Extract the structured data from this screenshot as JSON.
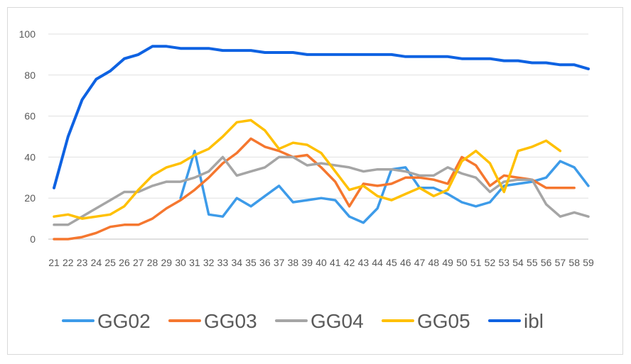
{
  "chart_data": {
    "type": "line",
    "title": "",
    "xlabel": "",
    "ylabel": "",
    "x": [
      21,
      22,
      23,
      24,
      25,
      26,
      27,
      28,
      29,
      30,
      31,
      32,
      33,
      34,
      35,
      36,
      37,
      38,
      39,
      40,
      41,
      42,
      43,
      44,
      45,
      46,
      47,
      48,
      49,
      50,
      51,
      52,
      53,
      54,
      55,
      56,
      57,
      58,
      59
    ],
    "ylim": [
      0,
      100
    ],
    "yticks": [
      0,
      20,
      40,
      60,
      80,
      100
    ],
    "grid": true,
    "legend_position": "bottom",
    "series": [
      {
        "name": "GG02",
        "color": "#3d9be9",
        "values": [
          null,
          null,
          null,
          null,
          null,
          null,
          null,
          null,
          null,
          20,
          43,
          12,
          11,
          20,
          16,
          21,
          26,
          18,
          19,
          20,
          19,
          11,
          8,
          15,
          34,
          35,
          25,
          25,
          22,
          18,
          16,
          18,
          26,
          27,
          28,
          30,
          38,
          35,
          26
        ]
      },
      {
        "name": "GG03",
        "color": "#f5772f",
        "values": [
          0,
          0,
          1,
          3,
          6,
          7,
          7,
          10,
          15,
          19,
          24,
          30,
          37,
          42,
          49,
          45,
          43,
          40,
          41,
          35,
          28,
          16,
          27,
          26,
          27,
          30,
          30,
          29,
          27,
          40,
          36,
          26,
          31,
          30,
          29,
          25,
          25,
          25,
          null
        ]
      },
      {
        "name": "GG04",
        "color": "#a5a5a5",
        "values": [
          7,
          7,
          11,
          15,
          19,
          23,
          23,
          26,
          28,
          28,
          30,
          33,
          40,
          31,
          33,
          35,
          40,
          40,
          36,
          37,
          36,
          35,
          33,
          34,
          34,
          33,
          31,
          31,
          35,
          32,
          30,
          23,
          28,
          29,
          29,
          17,
          11,
          13,
          11
        ]
      },
      {
        "name": "GG05",
        "color": "#ffc000",
        "values": [
          11,
          12,
          10,
          11,
          12,
          16,
          24,
          31,
          35,
          37,
          41,
          44,
          50,
          57,
          58,
          53,
          44,
          47,
          46,
          42,
          33,
          24,
          26,
          21,
          19,
          22,
          25,
          21,
          24,
          38,
          43,
          37,
          23,
          43,
          45,
          48,
          43,
          null,
          null
        ]
      },
      {
        "name": "ibl",
        "color": "#0e62e2",
        "values": [
          25,
          50,
          68,
          78,
          82,
          88,
          90,
          94,
          94,
          93,
          93,
          93,
          92,
          92,
          92,
          91,
          91,
          91,
          90,
          90,
          90,
          90,
          90,
          90,
          90,
          89,
          89,
          89,
          89,
          88,
          88,
          88,
          87,
          87,
          86,
          86,
          85,
          85,
          83
        ]
      }
    ]
  }
}
